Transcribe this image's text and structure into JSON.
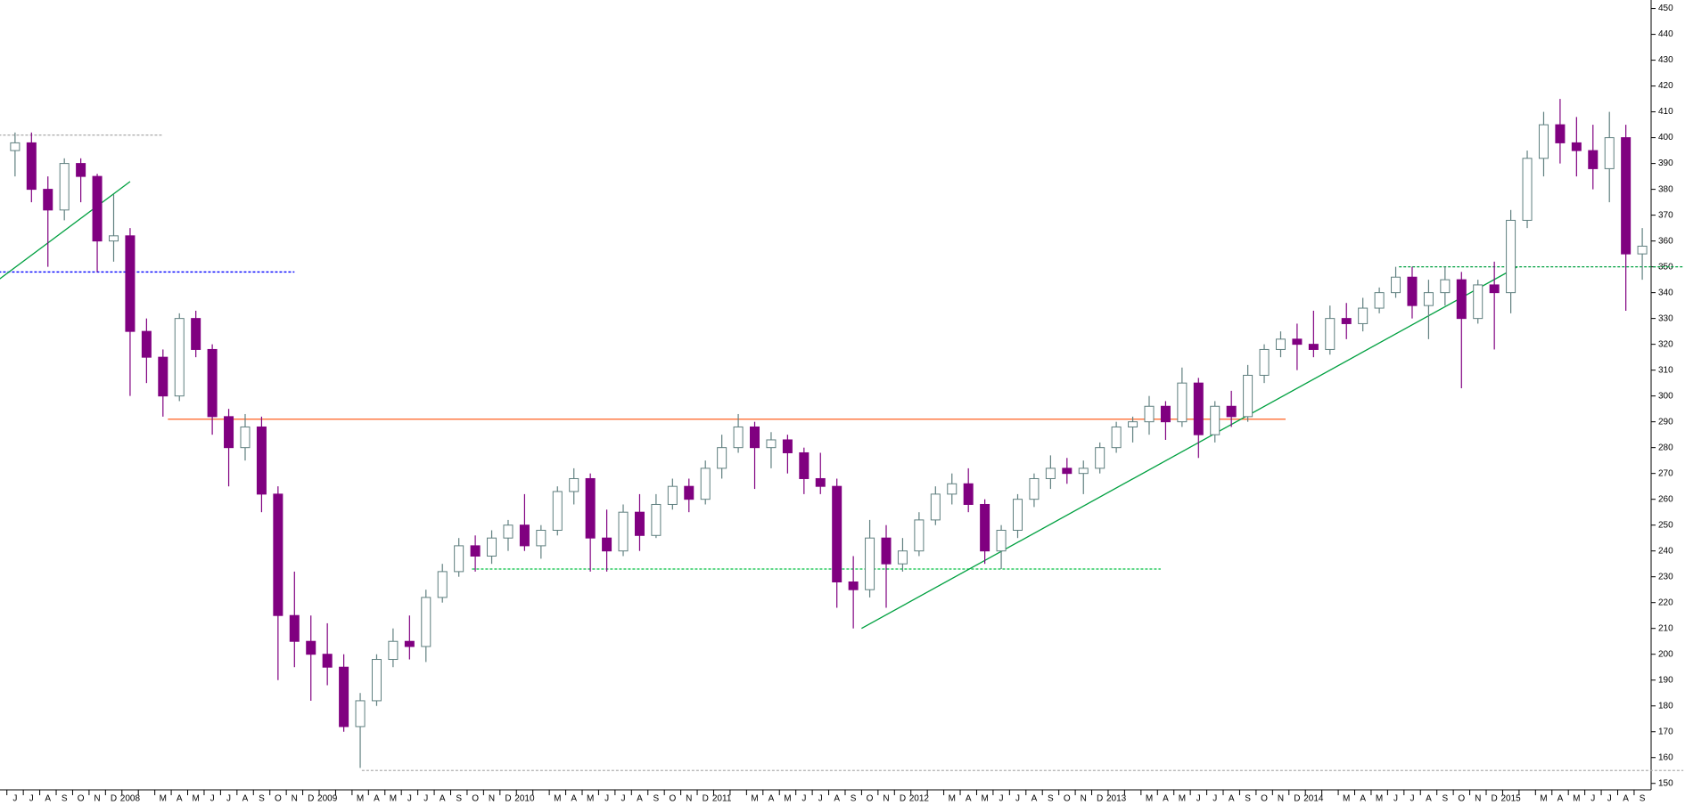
{
  "chart_data": {
    "type": "candlestick",
    "categories": [
      "J",
      "J",
      "A",
      "S",
      "O",
      "N",
      "D",
      "2008",
      null,
      "M",
      "A",
      "M",
      "J",
      "J",
      "A",
      "S",
      "O",
      "N",
      "D",
      "2009",
      null,
      "M",
      "A",
      "M",
      "J",
      "J",
      "A",
      "S",
      "O",
      "N",
      "D",
      "2010",
      null,
      "M",
      "A",
      "M",
      "J",
      "J",
      "A",
      "S",
      "O",
      "N",
      "D",
      "2011",
      null,
      "M",
      "A",
      "M",
      "J",
      "J",
      "A",
      "S",
      "O",
      "N",
      "D",
      "2012",
      null,
      "M",
      "A",
      "M",
      "J",
      "J",
      "A",
      "S",
      "O",
      "N",
      "D",
      "2013",
      null,
      "M",
      "A",
      "M",
      "J",
      "J",
      "A",
      "S",
      "O",
      "N",
      "D",
      "2014",
      null,
      "M",
      "A",
      "M",
      "J",
      "J",
      "A",
      "S",
      "O",
      "N",
      "D",
      "2015",
      null,
      "M",
      "A",
      "M",
      "J",
      "J",
      "A",
      "S"
    ],
    "open": [
      395,
      398,
      380,
      372,
      390,
      385,
      360,
      362,
      325,
      315,
      300,
      330,
      318,
      292,
      280,
      288,
      262,
      215,
      205,
      200,
      195,
      172,
      182,
      198,
      205,
      203,
      222,
      232,
      242,
      238,
      245,
      250,
      242,
      248,
      263,
      268,
      245,
      240,
      255,
      246,
      258,
      265,
      260,
      272,
      280,
      288,
      280,
      283,
      278,
      268,
      265,
      228,
      225,
      245,
      235,
      240,
      252,
      262,
      266,
      258,
      240,
      248,
      260,
      268,
      272,
      270,
      272,
      280,
      288,
      290,
      296,
      290,
      305,
      285,
      296,
      292,
      308,
      318,
      322,
      320,
      318,
      330,
      328,
      334,
      340,
      346,
      335,
      340,
      345,
      330,
      343,
      340,
      368,
      392,
      405,
      398,
      395,
      388,
      400,
      355
    ],
    "high": [
      402,
      402,
      385,
      392,
      392,
      386,
      378,
      365,
      330,
      318,
      332,
      333,
      320,
      295,
      293,
      292,
      265,
      232,
      215,
      212,
      200,
      185,
      200,
      210,
      215,
      225,
      235,
      245,
      246,
      248,
      252,
      262,
      250,
      265,
      272,
      270,
      256,
      258,
      262,
      262,
      268,
      268,
      275,
      285,
      293,
      290,
      286,
      285,
      280,
      278,
      268,
      238,
      252,
      250,
      245,
      255,
      265,
      270,
      272,
      260,
      250,
      262,
      270,
      277,
      276,
      275,
      282,
      290,
      292,
      300,
      298,
      311,
      307,
      298,
      302,
      312,
      320,
      325,
      328,
      333,
      335,
      336,
      338,
      342,
      350,
      350,
      345,
      350,
      348,
      345,
      352,
      372,
      395,
      410,
      415,
      408,
      405,
      410,
      405,
      365
    ],
    "low": [
      385,
      375,
      350,
      368,
      375,
      348,
      352,
      300,
      305,
      292,
      298,
      315,
      285,
      265,
      275,
      255,
      190,
      195,
      182,
      188,
      170,
      156,
      180,
      195,
      198,
      197,
      220,
      230,
      232,
      235,
      240,
      240,
      237,
      246,
      258,
      232,
      232,
      238,
      240,
      245,
      256,
      255,
      258,
      268,
      278,
      264,
      272,
      270,
      262,
      262,
      218,
      210,
      222,
      218,
      232,
      238,
      250,
      258,
      255,
      235,
      233,
      245,
      257,
      264,
      266,
      262,
      270,
      278,
      282,
      285,
      283,
      288,
      276,
      282,
      288,
      290,
      305,
      315,
      310,
      315,
      316,
      322,
      325,
      332,
      338,
      330,
      322,
      335,
      303,
      328,
      318,
      332,
      365,
      385,
      390,
      385,
      380,
      375,
      333,
      345
    ],
    "close": [
      398,
      380,
      372,
      390,
      385,
      360,
      362,
      325,
      315,
      300,
      330,
      318,
      292,
      280,
      288,
      262,
      215,
      205,
      200,
      195,
      172,
      182,
      198,
      205,
      203,
      222,
      232,
      242,
      238,
      245,
      250,
      242,
      248,
      263,
      268,
      245,
      240,
      255,
      246,
      258,
      265,
      260,
      272,
      280,
      288,
      280,
      283,
      278,
      268,
      265,
      228,
      225,
      245,
      235,
      240,
      252,
      262,
      266,
      258,
      240,
      248,
      260,
      268,
      272,
      270,
      272,
      280,
      288,
      290,
      296,
      290,
      305,
      285,
      296,
      292,
      308,
      318,
      322,
      320,
      318,
      330,
      328,
      334,
      340,
      346,
      335,
      340,
      345,
      330,
      343,
      340,
      368,
      392,
      405,
      398,
      395,
      388,
      400,
      355,
      358
    ],
    "up_color": "#ffffff",
    "up_edge_color": "#5f7f7f",
    "down_color": "#800080",
    "ylim": [
      147.5,
      453.3
    ],
    "yticks": [
      150,
      160,
      170,
      180,
      190,
      200,
      210,
      220,
      230,
      240,
      250,
      260,
      270,
      280,
      290,
      300,
      310,
      320,
      330,
      340,
      350,
      360,
      370,
      380,
      390,
      400,
      410,
      420,
      430,
      440,
      450
    ],
    "lines": [
      {
        "x": [
          -1,
          9
        ],
        "y": [
          401,
          401
        ],
        "color": "#b0b0b0",
        "dash": true
      },
      {
        "x": [
          -1,
          17
        ],
        "y": [
          348,
          348
        ],
        "color": "#0000ff",
        "dash": true
      },
      {
        "x": [
          -1,
          7
        ],
        "y": [
          345,
          383
        ],
        "color": "#00a040",
        "dash": false
      },
      {
        "x": [
          9.3,
          77.3
        ],
        "y": [
          291,
          291
        ],
        "color": "#ff6020",
        "dash": false
      },
      {
        "x": [
          27.8,
          69.7
        ],
        "y": [
          233,
          233
        ],
        "color": "#00c040",
        "dash": true
      },
      {
        "x": [
          51.5,
          91.4
        ],
        "y": [
          210,
          350
        ],
        "color": "#00a040",
        "dash": false
      },
      {
        "x": [
          84.2,
          101.5
        ],
        "y": [
          350,
          350
        ],
        "color": "#00a040",
        "dash": true
      },
      {
        "x": [
          21.1,
          101.5
        ],
        "y": [
          155,
          155
        ],
        "color": "#b0b0b0",
        "dash": true
      }
    ]
  }
}
